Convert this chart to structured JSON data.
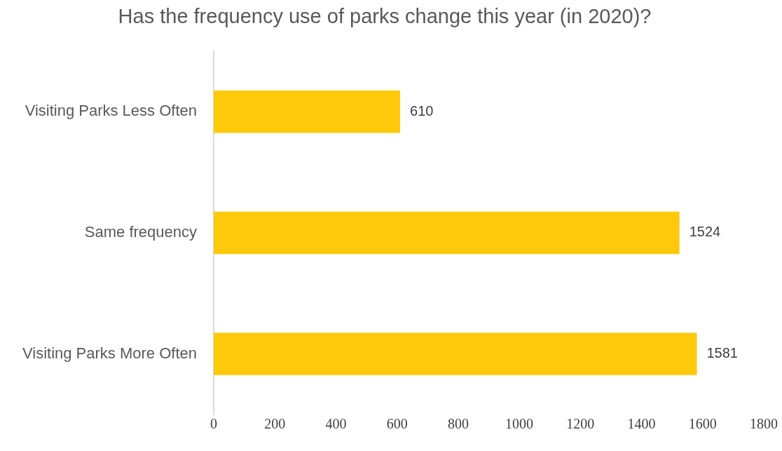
{
  "chart_data": {
    "type": "bar",
    "orientation": "horizontal",
    "title": "Has the frequency use of parks change this year (in 2020)?",
    "categories": [
      "Visiting Parks Less Often",
      "Same frequency",
      "Visiting Parks More Often"
    ],
    "values": [
      610,
      1524,
      1581
    ],
    "color": "#fec90a",
    "xlim": [
      0,
      1800
    ],
    "xticks": [
      0,
      200,
      400,
      600,
      800,
      1000,
      1200,
      1400,
      1600,
      1800
    ],
    "data_labels": true,
    "grid": false,
    "legend": false
  }
}
